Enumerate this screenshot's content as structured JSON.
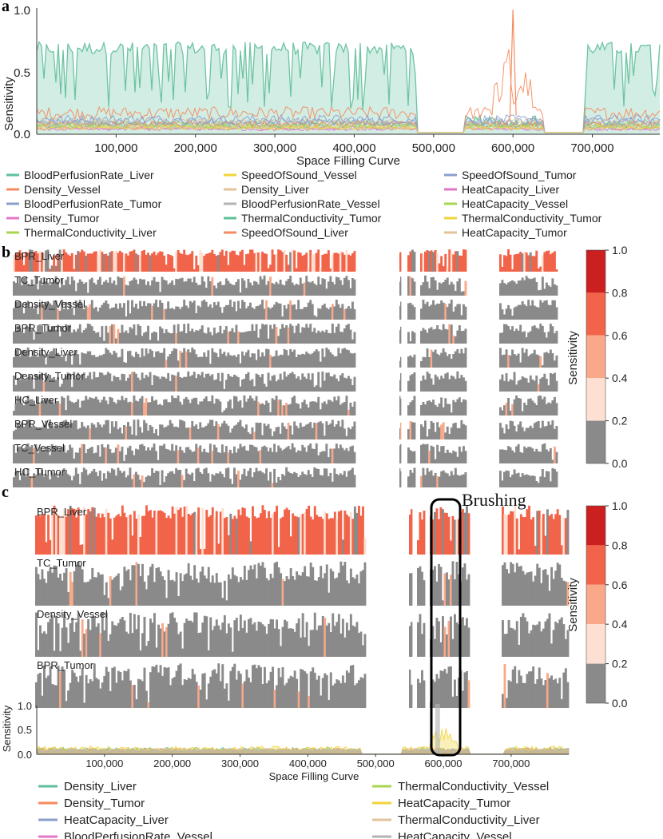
{
  "chart_data": [
    {
      "panel": "a",
      "type": "area",
      "xlabel": "Space Filling Curve",
      "ylabel": "Sensitivity",
      "xlim": [
        0,
        785000
      ],
      "ylim": [
        0,
        1.0
      ],
      "xticks": [
        100000,
        200000,
        300000,
        400000,
        500000,
        600000,
        700000
      ],
      "xtick_labels": [
        "100,000",
        "200,000",
        "300,000",
        "400,000",
        "500,000",
        "600,000",
        "700,000"
      ],
      "yticks": [
        0.0,
        0.5,
        1.0
      ],
      "ytick_labels": [
        "0.0",
        "0.5",
        "1.0"
      ],
      "gaps": [
        [
          480000,
          540000
        ],
        [
          640000,
          690000
        ]
      ],
      "series": [
        {
          "name": "BloodPerfusionRate_Liver",
          "color": "#5fbf9a",
          "level": 0.72
        },
        {
          "name": "Density_Vessel",
          "color": "#f58a5e",
          "level": 0.17
        },
        {
          "name": "BloodPerfusionRate_Tumor",
          "color": "#8b9fcf",
          "level": 0.12
        },
        {
          "name": "Density_Tumor",
          "color": "#e476c8",
          "level": 0.05
        },
        {
          "name": "ThermalConductivity_Liver",
          "color": "#a7d54f",
          "level": 0.08
        },
        {
          "name": "SpeedOfSound_Vessel",
          "color": "#f2d43a",
          "level": 0.06
        },
        {
          "name": "Density_Liver",
          "color": "#e2c39a",
          "level": 0.1
        },
        {
          "name": "BloodPerfusionRate_Vessel",
          "color": "#b3b3b3",
          "level": 0.09
        },
        {
          "name": "ThermalConductivity_Tumor",
          "color": "#5fbf9a",
          "level": 0.07
        },
        {
          "name": "SpeedOfSound_Liver",
          "color": "#f58a5e",
          "level": 0.08
        },
        {
          "name": "SpeedOfSound_Tumor",
          "color": "#8b9fcf",
          "level": 0.1
        },
        {
          "name": "HeatCapacity_Liver",
          "color": "#e476c8",
          "level": 0.04
        },
        {
          "name": "HeatCapacity_Vessel",
          "color": "#a7d54f",
          "level": 0.06
        },
        {
          "name": "ThermalConductivity_Tumor",
          "color": "#f2d43a",
          "level": 0.05
        },
        {
          "name": "HeatCapacity_Tumor",
          "color": "#e2c39a",
          "level": 0.06
        }
      ]
    },
    {
      "panel": "b",
      "type": "heatmap",
      "colorbar_label": "Sensitivity",
      "colorbar_ticks": [
        "1.0",
        "0.8",
        "0.6",
        "0.4",
        "0.2",
        "0.0"
      ],
      "colorbar_colors": [
        "#cc1f1f",
        "#f2644a",
        "#f9a98a",
        "#fde0d2",
        "#8a8a8a"
      ],
      "tracks": [
        {
          "label": "BPR_Liver",
          "level": 0.62
        },
        {
          "label": "TC_Tumor",
          "level": 0.5
        },
        {
          "label": "Density_Vessel",
          "level": 0.42
        },
        {
          "label": "BPR_Tumor",
          "level": 0.36
        },
        {
          "label": "Density_Liver",
          "level": 0.3
        },
        {
          "label": "Density_Tumor",
          "level": 0.26
        },
        {
          "label": "HC_Liver",
          "level": 0.22
        },
        {
          "label": "BPR_Vessel",
          "level": 0.18
        },
        {
          "label": "TC_Vessel",
          "level": 0.15
        },
        {
          "label": "HC_Tumor",
          "level": 0.12
        }
      ]
    },
    {
      "panel": "c",
      "type": "heatmap",
      "annotation": "Brushing",
      "brush_range": [
        585000,
        620000
      ],
      "colorbar_label": "Sensitivity",
      "colorbar_ticks": [
        "1.0",
        "0.8",
        "0.6",
        "0.4",
        "0.2",
        "0.0"
      ],
      "tracks": [
        {
          "label": "BPR_Liver",
          "level": 0.62
        },
        {
          "label": "TC_Tumor",
          "level": 0.5
        },
        {
          "label": "Density_Vessel",
          "level": 0.42
        },
        {
          "label": "BPR_Tumor",
          "level": 0.36
        }
      ],
      "xlabel": "Space Filling Curve",
      "ylabel": "Sensitivity",
      "yticks": [
        "0.0",
        "0.5",
        "1.0"
      ],
      "xtick_labels": [
        "100,000",
        "200,000",
        "300,000",
        "400,000",
        "500,000",
        "600,000",
        "700,000"
      ],
      "series": [
        {
          "name": "Density_Liver",
          "color": "#5fbf9a",
          "level": 0.1
        },
        {
          "name": "Density_Tumor",
          "color": "#f58a5e",
          "level": 0.09
        },
        {
          "name": "HeatCapacity_Liver",
          "color": "#8b9fcf",
          "level": 0.08
        },
        {
          "name": "BloodPerfusionRate_Vessel",
          "color": "#e476c8",
          "level": 0.07
        },
        {
          "name": "ThermalConductivity_Vessel",
          "color": "#a7d54f",
          "level": 0.08
        },
        {
          "name": "HeatCapacity_Tumor",
          "color": "#f2d43a",
          "level": 0.12
        },
        {
          "name": "ThermalConductivity_Liver",
          "color": "#e2c39a",
          "level": 0.09
        },
        {
          "name": "HeatCapacity_Vessel",
          "color": "#b3b3b3",
          "level": 0.08
        }
      ]
    }
  ],
  "panels": {
    "a": "a",
    "b": "b",
    "c": "c"
  }
}
